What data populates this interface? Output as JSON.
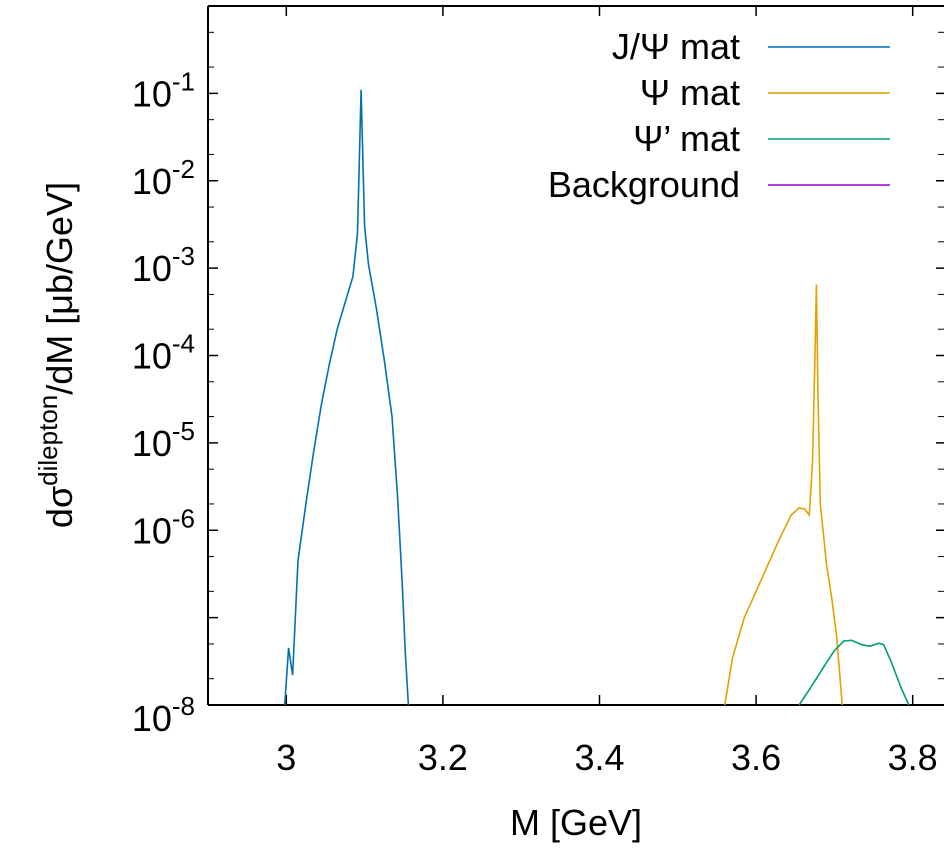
{
  "chart_data": {
    "type": "line",
    "title": "",
    "xlabel": "M [GeV]",
    "ylabel": {
      "prefix": "dσ",
      "superscript": "dilepton",
      "suffix": "/dM [μb/GeV]"
    },
    "xlim": [
      2.9,
      3.84
    ],
    "ylim": [
      1e-08,
      1
    ],
    "yscale": "log",
    "grid": false,
    "legend_position": "top-right",
    "x_ticks": [
      {
        "value": 3.0,
        "label": "3"
      },
      {
        "value": 3.2,
        "label": "3.2"
      },
      {
        "value": 3.4,
        "label": "3.4"
      },
      {
        "value": 3.6,
        "label": "3.6"
      },
      {
        "value": 3.8,
        "label": "3.8"
      }
    ],
    "y_ticks": [
      {
        "value": 0.1,
        "base": "10",
        "exp": "-1"
      },
      {
        "value": 0.01,
        "base": "10",
        "exp": "-2"
      },
      {
        "value": 0.001,
        "base": "10",
        "exp": "-3"
      },
      {
        "value": 0.0001,
        "base": "10",
        "exp": "-4"
      },
      {
        "value": 1e-05,
        "base": "10",
        "exp": "-5"
      },
      {
        "value": 1e-06,
        "base": "10",
        "exp": "-6"
      },
      {
        "value": 1e-08,
        "base": "10",
        "exp": "-8"
      }
    ],
    "series": [
      {
        "name": "J/Ψ mat",
        "color": "#0072b2",
        "points": [
          [
            2.998,
            1e-08
          ],
          [
            3.003,
            4.5e-08
          ],
          [
            3.008,
            2.2e-08
          ],
          [
            3.015,
            4.5e-07
          ],
          [
            3.025,
            2e-06
          ],
          [
            3.035,
            8e-06
          ],
          [
            3.045,
            2.8e-05
          ],
          [
            3.055,
            8e-05
          ],
          [
            3.065,
            0.0002
          ],
          [
            3.075,
            0.0004
          ],
          [
            3.085,
            0.0008
          ],
          [
            3.091,
            0.0025
          ],
          [
            3.0955,
            0.11
          ],
          [
            3.1,
            0.003
          ],
          [
            3.105,
            0.0011
          ],
          [
            3.115,
            0.00035
          ],
          [
            3.125,
            9e-05
          ],
          [
            3.135,
            2e-05
          ],
          [
            3.142,
            2.5e-06
          ],
          [
            3.148,
            2.5e-07
          ],
          [
            3.152,
            4e-08
          ],
          [
            3.156,
            1e-08
          ]
        ]
      },
      {
        "name": "Ψ mat",
        "color": "#e69f00",
        "points": [
          [
            3.56,
            1e-08
          ],
          [
            3.57,
            3.5e-08
          ],
          [
            3.585,
            1e-07
          ],
          [
            3.6,
            2e-07
          ],
          [
            3.615,
            4e-07
          ],
          [
            3.63,
            8e-07
          ],
          [
            3.645,
            1.5e-06
          ],
          [
            3.655,
            1.8e-06
          ],
          [
            3.662,
            1.75e-06
          ],
          [
            3.668,
            1.5e-06
          ],
          [
            3.672,
            6e-06
          ],
          [
            3.675,
            8e-05
          ],
          [
            3.677,
            0.00065
          ],
          [
            3.679,
            4e-05
          ],
          [
            3.682,
            2e-06
          ],
          [
            3.69,
            4e-07
          ],
          [
            3.697,
            1.6e-07
          ],
          [
            3.703,
            6e-08
          ],
          [
            3.71,
            1e-08
          ]
        ]
      },
      {
        "name": "Ψ’ mat",
        "color": "#009e73",
        "points": [
          [
            3.655,
            1e-08
          ],
          [
            3.67,
            1.6e-08
          ],
          [
            3.685,
            2.6e-08
          ],
          [
            3.7,
            4.2e-08
          ],
          [
            3.712,
            5.4e-08
          ],
          [
            3.722,
            5.5e-08
          ],
          [
            3.735,
            4.9e-08
          ],
          [
            3.745,
            4.7e-08
          ],
          [
            3.757,
            5.1e-08
          ],
          [
            3.763,
            4.9e-08
          ],
          [
            3.772,
            3.2e-08
          ],
          [
            3.785,
            1.6e-08
          ],
          [
            3.795,
            1e-08
          ]
        ]
      },
      {
        "name": "Background",
        "color": "#9400d3",
        "points": []
      }
    ]
  }
}
